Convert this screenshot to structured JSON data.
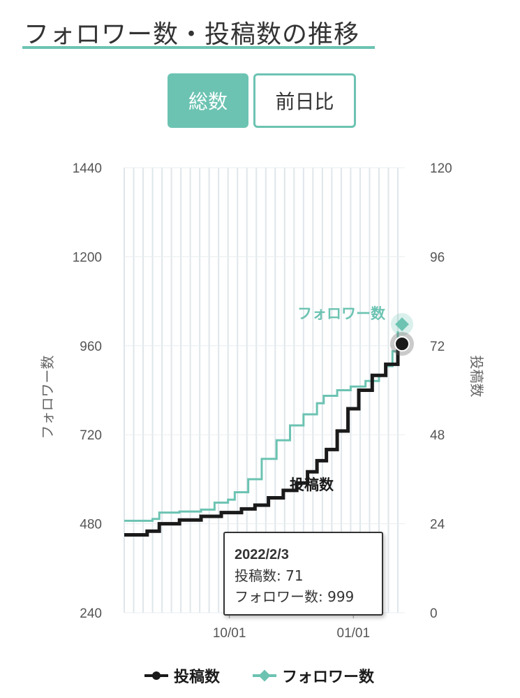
{
  "page": {
    "title": "フォロワー数・投稿数の推移"
  },
  "toggles": {
    "total_label": "総数",
    "daily_label": "前日比"
  },
  "tooltip": {
    "date": "2022/2/3",
    "posts_line": "投稿数: 71",
    "followers_line": "フォロワー数: 999"
  },
  "legend": {
    "posts": "投稿数",
    "followers": "フォロワー数"
  },
  "colors": {
    "accent": "#6cc3b2",
    "posts": "#1a1a1a",
    "followers": "#6cc3b2",
    "grid": "#dfe6ea"
  },
  "chart_data": {
    "type": "line",
    "x_tick_labels": [
      "10/01",
      "01/01"
    ],
    "x_tick_dates": [
      "2021-10-01",
      "2022-01-01"
    ],
    "left_axis": {
      "title": "フォロワー数",
      "ticks": [
        240,
        480,
        720,
        960,
        1200,
        1440
      ],
      "range": [
        240,
        1440
      ]
    },
    "right_axis": {
      "title": "投稿数",
      "ticks": [
        0,
        24,
        48,
        72,
        96,
        120
      ],
      "range": [
        0,
        120
      ]
    },
    "x_range": [
      "2021-07-15",
      "2022-02-03"
    ],
    "series": [
      {
        "name": "フォロワー数",
        "axis": "left",
        "points": [
          [
            "2021-07-15",
            488
          ],
          [
            "2021-08-05",
            493
          ],
          [
            "2021-08-10",
            510
          ],
          [
            "2021-08-25",
            513
          ],
          [
            "2021-09-10",
            518
          ],
          [
            "2021-09-20",
            537
          ],
          [
            "2021-09-30",
            545
          ],
          [
            "2021-10-05",
            565
          ],
          [
            "2021-10-15",
            600
          ],
          [
            "2021-10-25",
            655
          ],
          [
            "2021-11-05",
            705
          ],
          [
            "2021-11-15",
            745
          ],
          [
            "2021-11-25",
            775
          ],
          [
            "2021-12-05",
            805
          ],
          [
            "2021-12-10",
            825
          ],
          [
            "2021-12-20",
            840
          ],
          [
            "2021-12-30",
            850
          ],
          [
            "2022-01-10",
            865
          ],
          [
            "2022-01-20",
            880
          ],
          [
            "2022-01-25",
            905
          ],
          [
            "2022-01-30",
            945
          ],
          [
            "2022-02-03",
            999
          ]
        ]
      },
      {
        "name": "投稿数",
        "axis": "right",
        "points": [
          [
            "2021-07-15",
            21
          ],
          [
            "2021-07-25",
            21
          ],
          [
            "2021-08-01",
            22
          ],
          [
            "2021-08-10",
            24
          ],
          [
            "2021-08-25",
            25
          ],
          [
            "2021-09-10",
            26
          ],
          [
            "2021-09-25",
            27
          ],
          [
            "2021-10-10",
            28
          ],
          [
            "2021-10-20",
            29
          ],
          [
            "2021-10-30",
            31
          ],
          [
            "2021-11-10",
            33
          ],
          [
            "2021-11-20",
            35
          ],
          [
            "2021-11-28",
            38
          ],
          [
            "2021-12-05",
            41
          ],
          [
            "2021-12-12",
            44
          ],
          [
            "2021-12-20",
            49
          ],
          [
            "2021-12-28",
            55
          ],
          [
            "2022-01-05",
            60
          ],
          [
            "2022-01-15",
            64
          ],
          [
            "2022-01-25",
            67
          ],
          [
            "2022-02-03",
            71
          ]
        ]
      }
    ],
    "end_labels": {
      "followers": "フォロワー数",
      "posts": "投稿数"
    },
    "grid": true,
    "legend_position": "bottom"
  }
}
